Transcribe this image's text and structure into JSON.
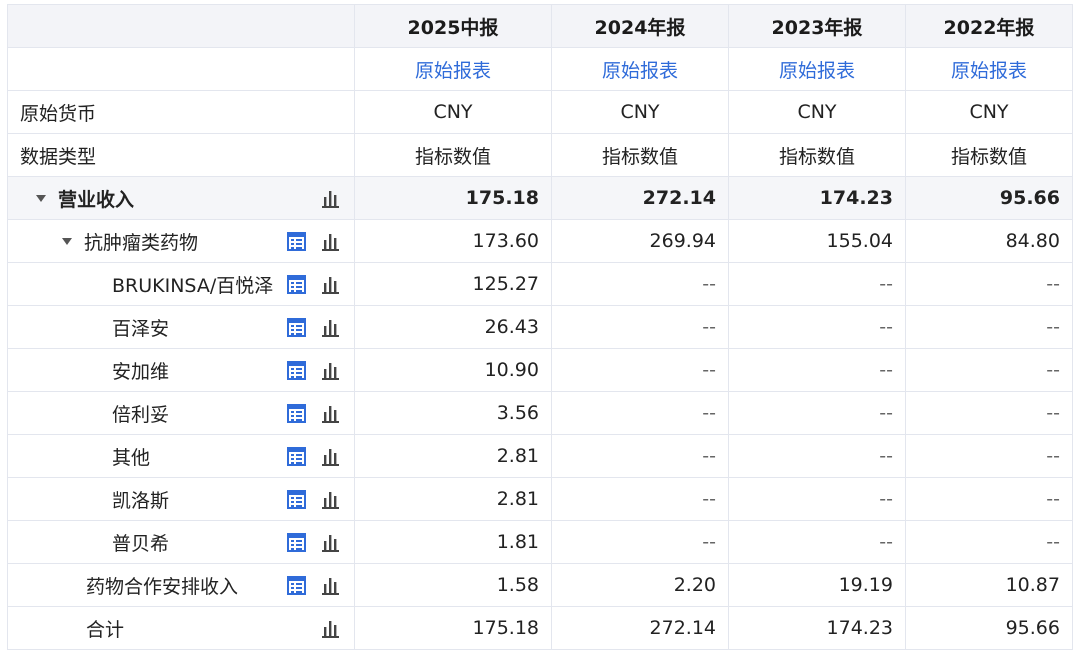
{
  "header": {
    "periods": [
      "2025中报",
      "2024年报",
      "2023年报",
      "2022年报"
    ],
    "links": [
      "原始报表",
      "原始报表",
      "原始报表",
      "原始报表"
    ]
  },
  "meta_rows": [
    {
      "label": "原始货币",
      "values": [
        "CNY",
        "CNY",
        "CNY",
        "CNY"
      ]
    },
    {
      "label": "数据类型",
      "values": [
        "指标数值",
        "指标数值",
        "指标数值",
        "指标数值"
      ]
    }
  ],
  "rows": [
    {
      "label": "营业收入",
      "values": [
        "175.18",
        "272.14",
        "174.23",
        "95.66"
      ]
    },
    {
      "label": "抗肿瘤类药物",
      "values": [
        "173.60",
        "269.94",
        "155.04",
        "84.80"
      ]
    },
    {
      "label": "BRUKINSA/百悦泽",
      "values": [
        "125.27",
        "--",
        "--",
        "--"
      ]
    },
    {
      "label": "百泽安",
      "values": [
        "26.43",
        "--",
        "--",
        "--"
      ]
    },
    {
      "label": "安加维",
      "values": [
        "10.90",
        "--",
        "--",
        "--"
      ]
    },
    {
      "label": "倍利妥",
      "values": [
        "3.56",
        "--",
        "--",
        "--"
      ]
    },
    {
      "label": "其他",
      "values": [
        "2.81",
        "--",
        "--",
        "--"
      ]
    },
    {
      "label": "凯洛斯",
      "values": [
        "2.81",
        "--",
        "--",
        "--"
      ]
    },
    {
      "label": "普贝希",
      "values": [
        "1.81",
        "--",
        "--",
        "--"
      ]
    },
    {
      "label": "药物合作安排收入",
      "values": [
        "1.58",
        "2.20",
        "19.19",
        "10.87"
      ]
    },
    {
      "label": "合计",
      "values": [
        "175.18",
        "272.14",
        "174.23",
        "95.66"
      ]
    }
  ],
  "icons": {
    "detail": "table-detail-icon",
    "chart": "bar-chart-icon"
  },
  "colors": {
    "link": "#2f6bd9",
    "detail_icon": "#2f6bd9",
    "chart_icon": "#444444",
    "header_bg": "#f3f4f8"
  }
}
